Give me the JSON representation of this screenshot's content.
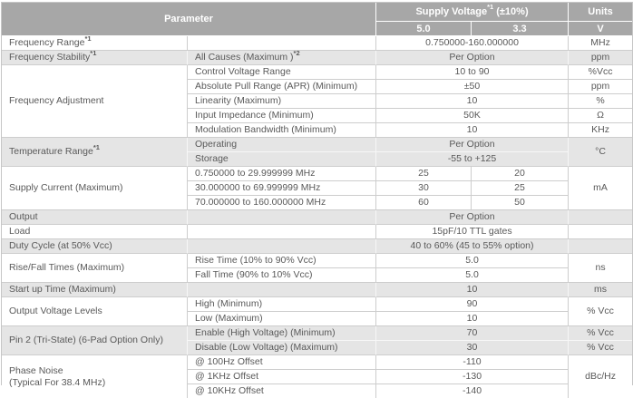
{
  "colors": {
    "header_bg": "#a7a7a7",
    "header_text": "#ffffff",
    "gray_row_bg": "#e5e5e5",
    "white_row_bg": "#ffffff",
    "body_text": "#595959",
    "border": "#cdcdcd"
  },
  "header": {
    "parameter": "Parameter",
    "supply_voltage": {
      "pre": "Supply Voltage",
      "sup": "*1",
      "post": " (±10%)"
    },
    "units": "Units",
    "col_5v": "5.0",
    "col_3v3": "3.3",
    "units_v": "V"
  },
  "rows": [
    {
      "g": false,
      "cells": [
        {
          "k": "p1",
          "t": "Frequency Range",
          "sup": "*1"
        },
        {
          "k": "p2",
          "t": ""
        },
        {
          "k": "v",
          "t": "0.750000-160.000000",
          "cs": 2
        },
        {
          "k": "u",
          "t": "MHz"
        }
      ]
    },
    {
      "g": true,
      "cells": [
        {
          "k": "p1",
          "t": "Frequency Stability",
          "sup": "*1"
        },
        {
          "k": "p2",
          "t": "All Causes (Maximum )",
          "sup": "*2"
        },
        {
          "k": "v",
          "t": "Per Option",
          "cs": 2
        },
        {
          "k": "u",
          "t": "ppm"
        }
      ]
    },
    {
      "g": false,
      "cells": [
        {
          "k": "p1",
          "t": "Frequency Adjustment",
          "rs": 5
        },
        {
          "k": "p2",
          "t": "Control Voltage Range"
        },
        {
          "k": "v",
          "t": "10 to 90",
          "cs": 2
        },
        {
          "k": "u",
          "t": "%Vcc"
        }
      ]
    },
    {
      "g": false,
      "cells": [
        {
          "k": "p2",
          "t": "Absolute Pull Range (APR) (Minimum)"
        },
        {
          "k": "v",
          "t": "±50",
          "cs": 2
        },
        {
          "k": "u",
          "t": "ppm"
        }
      ]
    },
    {
      "g": false,
      "cells": [
        {
          "k": "p2",
          "t": "Linearity (Maximum)"
        },
        {
          "k": "v",
          "t": "10",
          "cs": 2
        },
        {
          "k": "u",
          "t": "%"
        }
      ]
    },
    {
      "g": false,
      "cells": [
        {
          "k": "p2",
          "t": "Input Impedance (Minimum)"
        },
        {
          "k": "v",
          "t": "50K",
          "cs": 2
        },
        {
          "k": "u",
          "t": "Ω"
        }
      ]
    },
    {
      "g": false,
      "cells": [
        {
          "k": "p2",
          "t": "Modulation Bandwidth (Minimum)"
        },
        {
          "k": "v",
          "t": "10",
          "cs": 2
        },
        {
          "k": "u",
          "t": "KHz"
        }
      ]
    },
    {
      "g": true,
      "cells": [
        {
          "k": "p1",
          "t": "Temperature Range",
          "sup": "*1",
          "rs": 2
        },
        {
          "k": "p2",
          "t": "Operating"
        },
        {
          "k": "v",
          "t": "Per Option",
          "cs": 2
        },
        {
          "k": "u",
          "t": "°C",
          "rs": 2
        }
      ]
    },
    {
      "g": true,
      "cells": [
        {
          "k": "p2",
          "t": "Storage"
        },
        {
          "k": "v",
          "t": "-55 to +125",
          "cs": 2
        }
      ]
    },
    {
      "g": false,
      "cells": [
        {
          "k": "p1",
          "t": "Supply Current (Maximum)",
          "rs": 3
        },
        {
          "k": "p2",
          "t": "0.750000 to 29.999999 MHz"
        },
        {
          "k": "v",
          "t": "25"
        },
        {
          "k": "v",
          "t": "20"
        },
        {
          "k": "u",
          "t": "mA",
          "rs": 3
        }
      ]
    },
    {
      "g": false,
      "cells": [
        {
          "k": "p2",
          "t": "30.000000 to 69.999999 MHz"
        },
        {
          "k": "v",
          "t": "30"
        },
        {
          "k": "v",
          "t": "25"
        }
      ]
    },
    {
      "g": false,
      "cells": [
        {
          "k": "p2",
          "t": "70.000000 to 160.000000 MHz"
        },
        {
          "k": "v",
          "t": "60"
        },
        {
          "k": "v",
          "t": "50"
        }
      ]
    },
    {
      "g": true,
      "cells": [
        {
          "k": "p1",
          "t": "Output"
        },
        {
          "k": "p2",
          "t": ""
        },
        {
          "k": "v",
          "t": "Per Option",
          "cs": 2
        },
        {
          "k": "u",
          "t": ""
        }
      ]
    },
    {
      "g": false,
      "cells": [
        {
          "k": "p1",
          "t": "Load"
        },
        {
          "k": "p2",
          "t": ""
        },
        {
          "k": "v",
          "t": "15pF/10 TTL gates",
          "cs": 2
        },
        {
          "k": "u",
          "t": ""
        }
      ]
    },
    {
      "g": true,
      "cells": [
        {
          "k": "p1",
          "t": "Duty Cycle (at 50% Vcc)"
        },
        {
          "k": "p2",
          "t": ""
        },
        {
          "k": "v",
          "t": "40 to 60% (45 to 55% option)",
          "cs": 2
        },
        {
          "k": "u",
          "t": ""
        }
      ]
    },
    {
      "g": false,
      "cells": [
        {
          "k": "p1",
          "t": "Rise/Fall Times (Maximum)",
          "rs": 2
        },
        {
          "k": "p2",
          "t": "Rise Time (10% to 90% Vcc)"
        },
        {
          "k": "v",
          "t": "5.0",
          "cs": 2
        },
        {
          "k": "u",
          "t": "ns",
          "rs": 2
        }
      ]
    },
    {
      "g": false,
      "cells": [
        {
          "k": "p2",
          "t": "Fall Time (90% to 10% Vcc)"
        },
        {
          "k": "v",
          "t": "5.0",
          "cs": 2
        }
      ]
    },
    {
      "g": true,
      "cells": [
        {
          "k": "p1",
          "t": "Start up Time (Maximum)"
        },
        {
          "k": "p2",
          "t": ""
        },
        {
          "k": "v",
          "t": "10",
          "cs": 2
        },
        {
          "k": "u",
          "t": "ms"
        }
      ]
    },
    {
      "g": false,
      "cells": [
        {
          "k": "p1",
          "t": "Output Voltage Levels",
          "rs": 2
        },
        {
          "k": "p2",
          "t": "High (Minimum)"
        },
        {
          "k": "v",
          "t": "90",
          "cs": 2
        },
        {
          "k": "u",
          "t": "% Vcc",
          "rs": 2
        }
      ]
    },
    {
      "g": false,
      "cells": [
        {
          "k": "p2",
          "t": "Low (Maximum)"
        },
        {
          "k": "v",
          "t": "10",
          "cs": 2
        }
      ]
    },
    {
      "g": true,
      "cells": [
        {
          "k": "p1",
          "t": "Pin 2 (Tri-State) (6-Pad Option Only)",
          "rs": 2
        },
        {
          "k": "p2",
          "t": "Enable (High Voltage) (Minimum)"
        },
        {
          "k": "v",
          "t": "70",
          "cs": 2
        },
        {
          "k": "u",
          "t": "% Vcc"
        }
      ]
    },
    {
      "g": true,
      "cells": [
        {
          "k": "p2",
          "t": "Disable (Low Voltage) (Maximum)"
        },
        {
          "k": "v",
          "t": "30",
          "cs": 2
        },
        {
          "k": "u",
          "t": "% Vcc"
        }
      ]
    },
    {
      "g": false,
      "cells": [
        {
          "k": "p1",
          "lines": [
            "Phase Noise",
            "(Typical For 38.4 MHz)"
          ],
          "rs": 3
        },
        {
          "k": "p2",
          "t": "@ 100Hz Offset"
        },
        {
          "k": "v",
          "t": "-110",
          "cs": 2
        },
        {
          "k": "u",
          "t": "dBc/Hz",
          "rs": 3
        }
      ]
    },
    {
      "g": false,
      "cells": [
        {
          "k": "p2",
          "t": "@ 1KHz Offset"
        },
        {
          "k": "v",
          "t": "-130",
          "cs": 2
        }
      ]
    },
    {
      "g": false,
      "cells": [
        {
          "k": "p2",
          "t": "@ 10KHz Offset"
        },
        {
          "k": "v",
          "t": "-140",
          "cs": 2
        }
      ]
    }
  ]
}
